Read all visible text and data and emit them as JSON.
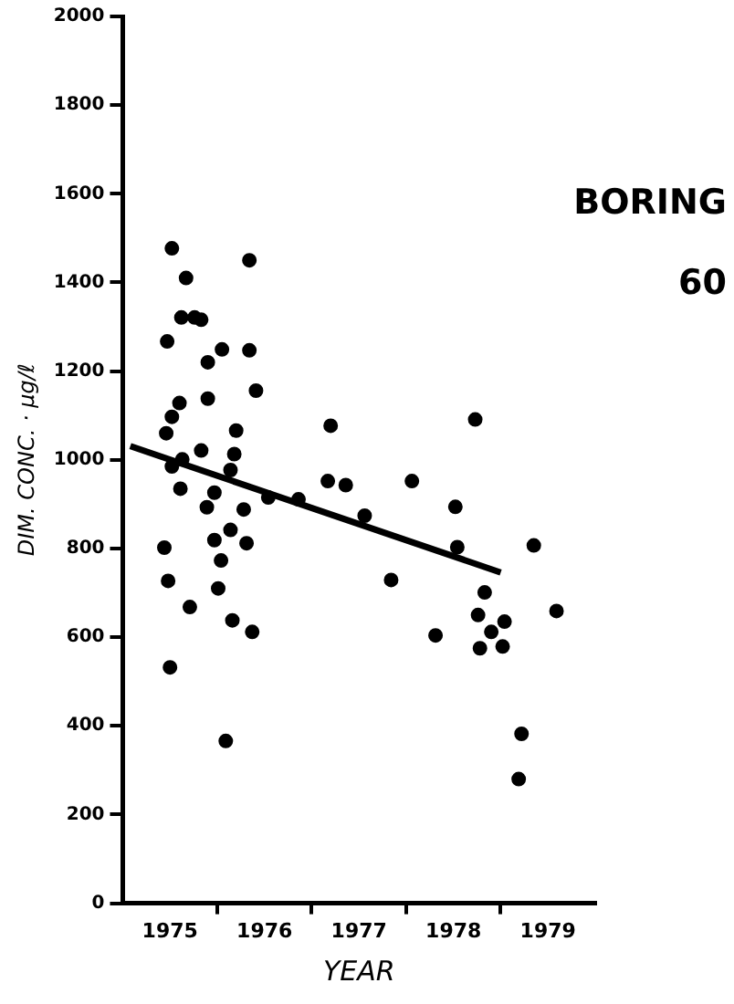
{
  "chart_data": {
    "type": "scatter",
    "xlabel": "YEAR",
    "ylabel": "DIM. CONC. · µg/ℓ",
    "annotations": [
      "BORING",
      "60"
    ],
    "xlim": [
      1975,
      1980
    ],
    "xticks": [
      {
        "value": 1975.5,
        "label": "1975"
      },
      {
        "value": 1976,
        "label": null
      },
      {
        "value": 1976.5,
        "label": "1976"
      },
      {
        "value": 1977,
        "label": null
      },
      {
        "value": 1977.5,
        "label": "1977"
      },
      {
        "value": 1978,
        "label": null
      },
      {
        "value": 1978.5,
        "label": "1978"
      },
      {
        "value": 1979,
        "label": null
      },
      {
        "value": 1979.5,
        "label": "1979"
      }
    ],
    "ylim": [
      0,
      2000
    ],
    "yticks": [
      0,
      200,
      400,
      600,
      800,
      1000,
      1200,
      1400,
      1600,
      1800,
      2000
    ],
    "grid": false,
    "legend": false,
    "marker": "circle",
    "series": [
      {
        "color": "#000000",
        "x": [
          1975.52,
          1975.67,
          1975.62,
          1975.76,
          1975.83,
          1976.34,
          1975.47,
          1976.05,
          1976.34,
          1975.9,
          1976.41,
          1975.6,
          1975.9,
          1975.52,
          1975.46,
          1976.2,
          1977.2,
          1975.83,
          1976.18,
          1975.63,
          1975.52,
          1976.14,
          1975.61,
          1977.17,
          1977.36,
          1975.97,
          1976.54,
          1976.86,
          1975.89,
          1976.28,
          1976.14,
          1975.97,
          1976.31,
          1975.44,
          1976.04,
          1975.48,
          1976.01,
          1975.71,
          1976.16,
          1976.37,
          1975.5,
          1976.09,
          1978.73,
          1978.06,
          1978.52,
          1977.56,
          1978.54,
          1979.35,
          1977.84,
          1978.83,
          1978.76,
          1979.04,
          1978.9,
          1979.59,
          1978.31,
          1978.78,
          1979.02,
          1979.22,
          1979.19
        ],
        "values": [
          1477,
          1410,
          1321,
          1321,
          1316,
          1450,
          1267,
          1249,
          1247,
          1220,
          1156,
          1128,
          1138,
          1097,
          1060,
          1066,
          1077,
          1021,
          1013,
          1001,
          985,
          977,
          935,
          952,
          943,
          926,
          915,
          911,
          893,
          888,
          842,
          819,
          812,
          802,
          773,
          727,
          710,
          668,
          638,
          612,
          532,
          366,
          1091,
          952,
          894,
          874,
          803,
          807,
          729,
          701,
          650,
          635,
          612,
          659,
          604,
          575,
          579,
          382,
          280
        ]
      },
      {
        "type": "line",
        "color": "#000000",
        "marker": "none",
        "line_style": "solid",
        "x": [
          1975.08,
          1979.0
        ],
        "values": [
          1031,
          746
        ]
      }
    ]
  }
}
